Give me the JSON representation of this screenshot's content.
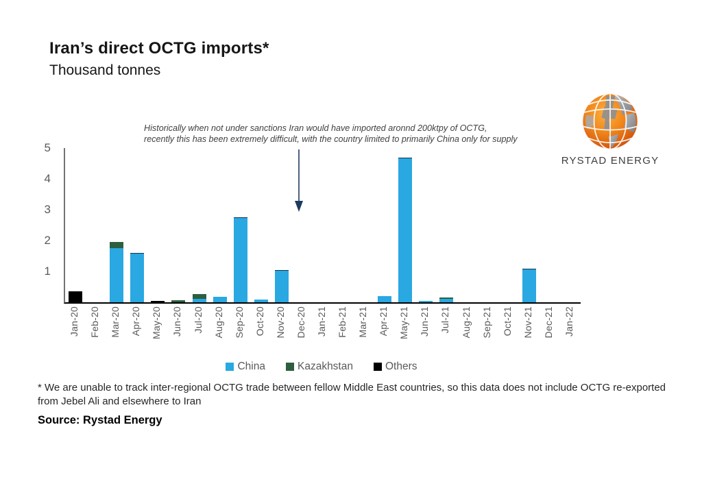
{
  "header": {
    "title": "Iran’s direct OCTG imports*",
    "subtitle": "Thousand tonnes"
  },
  "logo": {
    "wordmark": "RYSTAD ENERGY",
    "globe_icon": "globe-icon"
  },
  "colors": {
    "china": "#29a8e2",
    "kazakhstan": "#2d5f3e",
    "others": "#000000",
    "arrow": "#1f3a5f",
    "axis_text": "#595959"
  },
  "chart_data": {
    "type": "bar",
    "stacked": true,
    "title": "Iran’s direct OCTG imports*",
    "ylabel": "Thousand tonnes",
    "xlabel": "",
    "ylim": [
      0,
      5
    ],
    "yticks": [
      1,
      2,
      3,
      4,
      5
    ],
    "grid": false,
    "legend_position": "bottom",
    "annotation_lines": [
      "Historically when not under sanctions Iran would have imported aronnd 200ktpy of OCTG,",
      "recently this has been extremely  difficult, with the country limited to primarily China only for supply"
    ],
    "categories": [
      "Jan-20",
      "Feb-20",
      "Mar-20",
      "Apr-20",
      "May-20",
      "Jun-20",
      "Jul-20",
      "Aug-20",
      "Sep-20",
      "Oct-20",
      "Nov-20",
      "Dec-20",
      "Jan-21",
      "Feb-21",
      "Mar-21",
      "Apr-21",
      "May-21",
      "Jun-21",
      "Jul-21",
      "Aug-21",
      "Sep-21",
      "Oct-21",
      "Nov-21",
      "Dec-21",
      "Jan-22"
    ],
    "series": [
      {
        "name": "China",
        "color": "#29a8e2",
        "values": [
          0,
          0,
          1.75,
          1.6,
          0,
          0,
          0.12,
          0.17,
          2.75,
          0.08,
          1.05,
          0,
          0,
          0,
          0,
          0.2,
          4.7,
          0.05,
          0.12,
          0,
          0,
          0,
          1.1,
          0,
          0
        ]
      },
      {
        "name": "Kazakhstan",
        "color": "#2d5f3e",
        "values": [
          0,
          0,
          0.2,
          0,
          0,
          0.07,
          0.15,
          0,
          0,
          0,
          0,
          0,
          0,
          0,
          0,
          0,
          0,
          0,
          0.03,
          0,
          0,
          0,
          0,
          0,
          0
        ]
      },
      {
        "name": "Others",
        "color": "#000000",
        "values": [
          0.35,
          0,
          0,
          0,
          0.04,
          0,
          0,
          0,
          0,
          0,
          0,
          0,
          0,
          0,
          0,
          0,
          0,
          0,
          0,
          0,
          0,
          0,
          0,
          0,
          0
        ]
      }
    ]
  },
  "footer": {
    "footnote": "* We are unable  to track inter-regional OCTG trade between fellow Middle East countries,  so this data does not include  OCTG re-exported from Jebel Ali and elsewhere to Iran",
    "source": "Source: Rystad Energy"
  }
}
